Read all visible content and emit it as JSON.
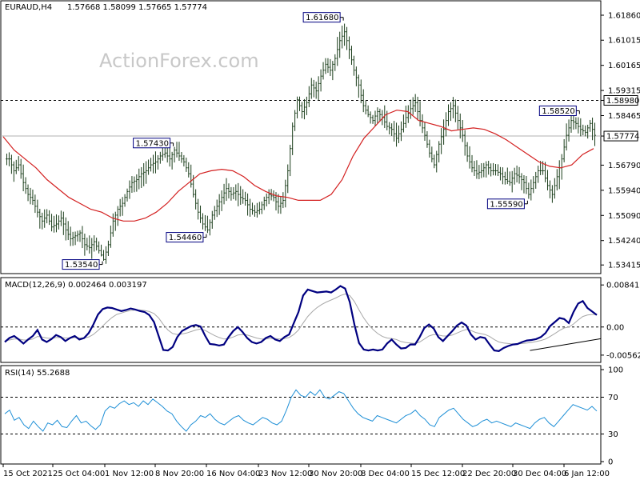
{
  "chart_data": {
    "type": "candlestick",
    "instrument_label": "EURAUD,H4",
    "ohlc_label": "1.57668 1.58099 1.57665 1.57774",
    "watermark": "ActionForex.com",
    "price_axis": {
      "range": [
        1.5315,
        1.6232
      ],
      "ticks": [
        "1.61860",
        "1.61015",
        "1.60165",
        "1.59315",
        "1.58980",
        "1.58465",
        "1.57774",
        "1.56790",
        "1.55940",
        "1.55090",
        "1.54240",
        "1.53415"
      ],
      "tick_values": [
        1.6186,
        1.61015,
        1.60165,
        1.59315,
        1.5898,
        1.58465,
        1.57774,
        1.5679,
        1.5594,
        1.5509,
        1.5424,
        1.53415
      ],
      "horizontal_level": 1.5898,
      "current_price": 1.57774,
      "hidden_tick": "1.57640"
    },
    "annotations": [
      {
        "label": "1.53540",
        "value": 1.5354,
        "bar": 20
      },
      {
        "label": "1.57430",
        "value": 1.5743,
        "bar": 35
      },
      {
        "label": "1.54460",
        "value": 1.5446,
        "bar": 42
      },
      {
        "label": "1.61680",
        "value": 1.6168,
        "bar": 71
      },
      {
        "label": "1.55590",
        "value": 1.5559,
        "bar": 110
      },
      {
        "label": "1.58520",
        "value": 1.5852,
        "bar": 121
      }
    ],
    "x_axis": {
      "labels": [
        "15 Oct 2021",
        "25 Oct 04:00",
        "1 Nov 12:00",
        "8 Nov 20:00",
        "16 Nov 04:00",
        "23 Nov 12:00",
        "30 Nov 20:00",
        "8 Dec 04:00",
        "15 Dec 12:00",
        "22 Dec 20:00",
        "30 Dec 04:00",
        "6 Jan 12:00"
      ]
    },
    "price_closes": [
      1.57,
      1.566,
      1.568,
      1.562,
      1.558,
      1.556,
      1.552,
      1.549,
      1.551,
      1.547,
      1.548,
      1.55,
      1.546,
      1.543,
      1.544,
      1.545,
      1.541,
      1.54,
      1.542,
      1.539,
      1.536,
      1.541,
      1.549,
      1.553,
      1.555,
      1.559,
      1.562,
      1.563,
      1.565,
      1.566,
      1.568,
      1.569,
      1.571,
      1.572,
      1.57,
      1.573,
      1.571,
      1.569,
      1.565,
      1.558,
      1.552,
      1.548,
      1.546,
      1.551,
      1.554,
      1.557,
      1.56,
      1.558,
      1.559,
      1.557,
      1.556,
      1.553,
      1.552,
      1.553,
      1.556,
      1.558,
      1.557,
      1.554,
      1.556,
      1.566,
      1.581,
      1.59,
      1.586,
      1.589,
      1.595,
      1.593,
      1.598,
      1.602,
      1.6,
      1.604,
      1.61,
      1.613,
      1.607,
      1.6,
      1.595,
      1.588,
      1.585,
      1.583,
      1.586,
      1.584,
      1.581,
      1.58,
      1.577,
      1.58,
      1.584,
      1.587,
      1.589,
      1.583,
      1.578,
      1.572,
      1.568,
      1.575,
      1.58,
      1.586,
      1.588,
      1.583,
      1.578,
      1.571,
      1.567,
      1.565,
      1.566,
      1.568,
      1.566,
      1.566,
      1.565,
      1.563,
      1.562,
      1.565,
      1.564,
      1.562,
      1.558,
      1.562,
      1.566,
      1.566,
      1.561,
      1.558,
      1.564,
      1.57,
      1.578,
      1.583,
      1.582,
      1.58,
      1.579,
      1.582,
      1.578
    ],
    "ma": [
      1.5775,
      1.573,
      1.57,
      1.567,
      1.563,
      1.56,
      1.557,
      1.555,
      1.553,
      1.552,
      1.55,
      1.549,
      1.549,
      1.55,
      1.552,
      1.555,
      1.559,
      1.562,
      1.565,
      1.566,
      1.5665,
      1.566,
      1.564,
      1.561,
      1.559,
      1.5575,
      1.557,
      1.556,
      1.556,
      1.556,
      1.558,
      1.563,
      1.571,
      1.577,
      1.581,
      1.585,
      1.5865,
      1.586,
      1.583,
      1.582,
      1.581,
      1.5795,
      1.58,
      1.5805,
      1.58,
      1.5785,
      1.5765,
      1.574,
      1.5715,
      1.569,
      1.5675,
      1.567,
      1.568,
      1.5715,
      1.5735
    ],
    "indicators": [
      {
        "name": "MACD",
        "label": "MACD(12,26,9) 0.002464 0.003197",
        "ticks": [
          "0.008411",
          "0.00",
          "-0.005625"
        ],
        "tick_values": [
          0.008411,
          0.0,
          -0.005625
        ],
        "range": [
          -0.0066,
          0.0094
        ],
        "macd": [
          -0.003,
          -0.0022,
          -0.0018,
          -0.0025,
          -0.0033,
          -0.0025,
          -0.0018,
          -0.0006,
          -0.0025,
          -0.003,
          -0.0024,
          -0.0016,
          -0.002,
          -0.0028,
          -0.0022,
          -0.0018,
          -0.0025,
          -0.0022,
          -0.0012,
          0.0005,
          0.0025,
          0.0036,
          0.0039,
          0.0038,
          0.0035,
          0.0032,
          0.0034,
          0.0037,
          0.0035,
          0.0032,
          0.003,
          0.0024,
          0.001,
          -0.0018,
          -0.0046,
          -0.0047,
          -0.004,
          -0.002,
          -0.0008,
          -0.0003,
          0.0002,
          0.0004,
          0.0001,
          -0.0018,
          -0.0034,
          -0.0035,
          -0.0037,
          -0.0035,
          -0.002,
          -0.0008,
          0.0,
          -0.001,
          -0.0022,
          -0.003,
          -0.0033,
          -0.003,
          -0.0022,
          -0.0018,
          -0.0025,
          -0.0028,
          -0.002,
          -0.0015,
          0.0008,
          0.003,
          0.0063,
          0.0075,
          0.0072,
          0.0069,
          0.007,
          0.0071,
          0.0069,
          0.0075,
          0.0082,
          0.0077,
          0.005,
          0.0005,
          -0.0032,
          -0.0045,
          -0.0047,
          -0.0045,
          -0.0047,
          -0.0045,
          -0.0033,
          -0.0025,
          -0.0035,
          -0.0043,
          -0.0042,
          -0.0035,
          -0.0035,
          -0.002,
          -0.0002,
          0.0005,
          -0.0003,
          -0.002,
          -0.0028,
          -0.0018,
          -0.0008,
          0.0003,
          0.0009,
          0.0003,
          -0.0015,
          -0.0025,
          -0.002,
          -0.0022,
          -0.0035,
          -0.0047,
          -0.0048,
          -0.0042,
          -0.0038,
          -0.0035,
          -0.0034,
          -0.003,
          -0.0027,
          -0.0026,
          -0.0024,
          -0.002,
          -0.0012,
          0.0002,
          0.001,
          0.0018,
          0.0016,
          0.0008,
          0.003,
          0.0047,
          0.0052,
          0.0038,
          0.0031,
          0.0024
        ],
        "signal": [
          -0.0028,
          -0.0026,
          -0.0024,
          -0.0024,
          -0.0026,
          -0.0026,
          -0.0024,
          -0.0019,
          -0.002,
          -0.0022,
          -0.0023,
          -0.0021,
          -0.0021,
          -0.0022,
          -0.0022,
          -0.0021,
          -0.0022,
          -0.0022,
          -0.002,
          -0.0015,
          -0.0007,
          0.0002,
          0.0011,
          0.0019,
          0.0025,
          0.0028,
          0.0031,
          0.0033,
          0.0034,
          0.0034,
          0.0033,
          0.0031,
          0.0027,
          0.0018,
          0.0005,
          -0.0006,
          -0.0013,
          -0.0015,
          -0.0014,
          -0.0012,
          -0.0009,
          -0.0006,
          -0.0004,
          -0.0007,
          -0.0012,
          -0.0017,
          -0.0021,
          -0.0024,
          -0.0023,
          -0.002,
          -0.0016,
          -0.0015,
          -0.0016,
          -0.0019,
          -0.0022,
          -0.0024,
          -0.0024,
          -0.0023,
          -0.0023,
          -0.0024,
          -0.0023,
          -0.0021,
          -0.0015,
          -0.0006,
          0.0008,
          0.0021,
          0.0031,
          0.0039,
          0.0045,
          0.005,
          0.0054,
          0.0058,
          0.0063,
          0.0066,
          0.0063,
          0.0051,
          0.0034,
          0.0018,
          0.0005,
          -0.0005,
          -0.0013,
          -0.0019,
          -0.0022,
          -0.0023,
          -0.0025,
          -0.0029,
          -0.0031,
          -0.0032,
          -0.0033,
          -0.003,
          -0.0024,
          -0.0018,
          -0.0015,
          -0.0016,
          -0.0018,
          -0.0018,
          -0.0016,
          -0.0012,
          -0.0008,
          -0.0005,
          -0.0007,
          -0.0011,
          -0.0013,
          -0.0015,
          -0.0019,
          -0.0025,
          -0.003,
          -0.0032,
          -0.0033,
          -0.0034,
          -0.0034,
          -0.0033,
          -0.0032,
          -0.0031,
          -0.0029,
          -0.0027,
          -0.0024,
          -0.0019,
          -0.0013,
          -0.0007,
          -0.0002,
          0.0,
          0.0006,
          0.0014,
          0.0021,
          0.0024,
          0.0025,
          0.0025
        ],
        "trendline": [
          [
            110,
            -0.0047
          ],
          [
            142,
            0.0004
          ]
        ]
      },
      {
        "name": "RSI",
        "label": "RSI(14) 55.2688",
        "ticks": [
          "100",
          "70",
          "30",
          "0"
        ],
        "tick_values": [
          100,
          70,
          30,
          0
        ],
        "range": [
          0,
          100
        ],
        "levels": [
          70,
          30
        ],
        "values": [
          52,
          56,
          45,
          48,
          40,
          36,
          44,
          38,
          33,
          42,
          40,
          45,
          38,
          37,
          44,
          50,
          42,
          44,
          39,
          35,
          40,
          55,
          60,
          58,
          63,
          66,
          62,
          64,
          60,
          66,
          62,
          68,
          64,
          60,
          55,
          52,
          44,
          38,
          33,
          40,
          44,
          50,
          48,
          52,
          46,
          42,
          40,
          44,
          48,
          50,
          45,
          42,
          40,
          44,
          48,
          46,
          42,
          40,
          44,
          56,
          70,
          78,
          72,
          70,
          76,
          72,
          78,
          70,
          68,
          72,
          76,
          74,
          66,
          58,
          52,
          48,
          46,
          44,
          50,
          48,
          46,
          44,
          42,
          46,
          50,
          52,
          56,
          50,
          46,
          40,
          38,
          48,
          52,
          56,
          58,
          52,
          46,
          42,
          38,
          40,
          44,
          46,
          42,
          44,
          42,
          40,
          38,
          42,
          40,
          38,
          36,
          42,
          46,
          48,
          42,
          38,
          44,
          50,
          56,
          62,
          60,
          58,
          56,
          60,
          55
        ]
      }
    ]
  }
}
